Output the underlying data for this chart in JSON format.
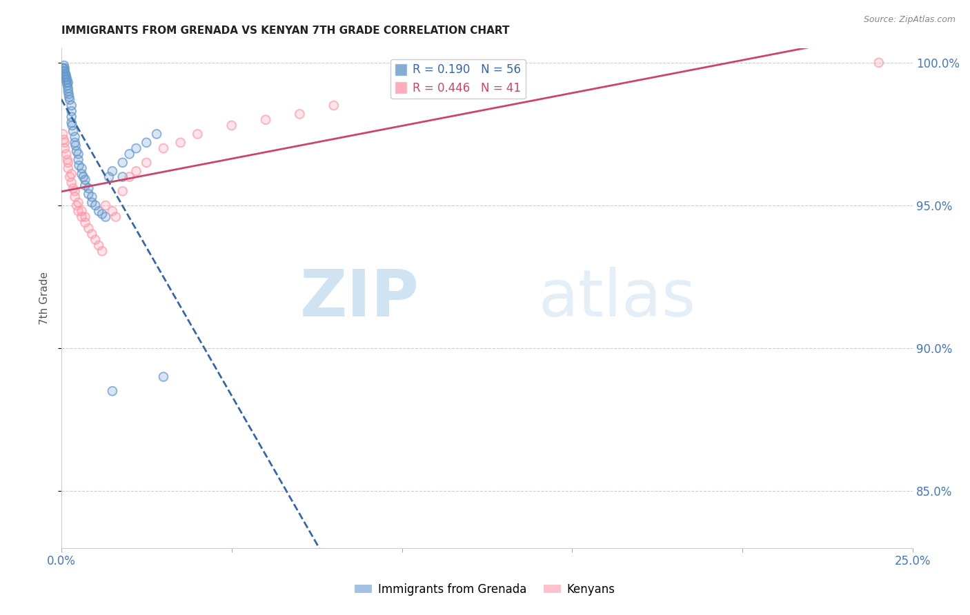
{
  "title": "IMMIGRANTS FROM GRENADA VS KENYAN 7TH GRADE CORRELATION CHART",
  "source": "Source: ZipAtlas.com",
  "ylabel": "7th Grade",
  "watermark_zip": "ZIP",
  "watermark_atlas": "atlas",
  "xlim": [
    0.0,
    0.25
  ],
  "ylim": [
    0.83,
    1.005
  ],
  "yticks": [
    0.85,
    0.9,
    0.95,
    1.0
  ],
  "ytick_labels": [
    "85.0%",
    "90.0%",
    "95.0%",
    "100.0%"
  ],
  "xticks": [
    0.0,
    0.05,
    0.1,
    0.15,
    0.2,
    0.25
  ],
  "xtick_labels": [
    "0.0%",
    "",
    "",
    "",
    "",
    "25.0%"
  ],
  "legend_entries": [
    {
      "label": "Immigrants from Grenada",
      "color": "#6699cc"
    },
    {
      "label": "Kenyans",
      "color": "#ff99aa"
    }
  ],
  "R_grenada": 0.19,
  "N_grenada": 56,
  "R_kenya": 0.446,
  "N_kenya": 41,
  "grenada_x": [
    0.0005,
    0.0006,
    0.0007,
    0.0008,
    0.001,
    0.001,
    0.001,
    0.0012,
    0.0013,
    0.0014,
    0.0015,
    0.0016,
    0.0017,
    0.0018,
    0.002,
    0.002,
    0.002,
    0.0022,
    0.0023,
    0.0025,
    0.003,
    0.003,
    0.003,
    0.003,
    0.0032,
    0.0035,
    0.004,
    0.004,
    0.0042,
    0.0045,
    0.005,
    0.005,
    0.0052,
    0.006,
    0.006,
    0.0065,
    0.007,
    0.007,
    0.008,
    0.008,
    0.009,
    0.009,
    0.01,
    0.011,
    0.012,
    0.013,
    0.014,
    0.015,
    0.018,
    0.02,
    0.022,
    0.025,
    0.028,
    0.03,
    0.015,
    0.018
  ],
  "grenada_y": [
    0.998,
    0.997,
    0.998,
    0.999,
    0.996,
    0.997,
    0.998,
    0.995,
    0.996,
    0.994,
    0.995,
    0.993,
    0.994,
    0.992,
    0.99,
    0.991,
    0.993,
    0.989,
    0.988,
    0.987,
    0.985,
    0.983,
    0.981,
    0.979,
    0.978,
    0.976,
    0.974,
    0.972,
    0.971,
    0.969,
    0.968,
    0.966,
    0.964,
    0.963,
    0.961,
    0.96,
    0.959,
    0.957,
    0.956,
    0.954,
    0.953,
    0.951,
    0.95,
    0.948,
    0.947,
    0.946,
    0.96,
    0.962,
    0.965,
    0.968,
    0.97,
    0.972,
    0.975,
    0.89,
    0.885,
    0.96
  ],
  "kenya_x": [
    0.0005,
    0.0008,
    0.001,
    0.001,
    0.0015,
    0.0018,
    0.002,
    0.002,
    0.0025,
    0.003,
    0.003,
    0.0035,
    0.004,
    0.004,
    0.0045,
    0.005,
    0.005,
    0.006,
    0.006,
    0.007,
    0.007,
    0.008,
    0.009,
    0.01,
    0.011,
    0.012,
    0.013,
    0.015,
    0.016,
    0.018,
    0.02,
    0.022,
    0.025,
    0.03,
    0.035,
    0.04,
    0.05,
    0.06,
    0.07,
    0.08,
    0.24
  ],
  "kenya_y": [
    0.975,
    0.973,
    0.97,
    0.972,
    0.968,
    0.966,
    0.963,
    0.965,
    0.96,
    0.958,
    0.961,
    0.956,
    0.953,
    0.955,
    0.95,
    0.948,
    0.951,
    0.946,
    0.948,
    0.944,
    0.946,
    0.942,
    0.94,
    0.938,
    0.936,
    0.934,
    0.95,
    0.948,
    0.946,
    0.955,
    0.96,
    0.962,
    0.965,
    0.97,
    0.972,
    0.975,
    0.978,
    0.98,
    0.982,
    0.985,
    1.0
  ],
  "title_fontsize": 11,
  "source_fontsize": 9,
  "axis_color": "#4477bb",
  "scatter_alpha": 0.45,
  "scatter_size": 85,
  "grenada_color": "#6699cc",
  "kenya_color": "#ff99aa",
  "grenada_line_color": "#3366aa",
  "kenya_line_color": "#cc4466",
  "background_color": "#ffffff"
}
